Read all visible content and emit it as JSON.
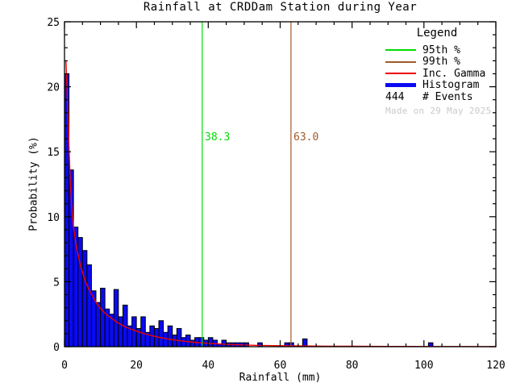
{
  "chart_data": {
    "type": "bar",
    "title": "Rainfall at CRDDam Station during Year",
    "xlabel": "Rainfall (mm)",
    "ylabel": "Probability (%)",
    "xlim": [
      0,
      120
    ],
    "ylim": [
      0,
      25
    ],
    "x_major_ticks": [
      0,
      20,
      40,
      60,
      80,
      100,
      120
    ],
    "x_minor_step": 5,
    "y_major_ticks": [
      0,
      5,
      10,
      15,
      20,
      25
    ],
    "y_minor_step": 1,
    "grid": false,
    "legend_position": "top-right-inside",
    "bin_width_mm": 1.25,
    "histogram_percent": [
      21.0,
      13.6,
      9.2,
      8.4,
      7.4,
      6.3,
      4.3,
      3.4,
      4.5,
      2.9,
      2.5,
      4.4,
      2.3,
      3.2,
      1.6,
      2.3,
      1.4,
      2.3,
      1.1,
      1.6,
      1.4,
      2.0,
      1.1,
      1.6,
      0.9,
      1.4,
      0.7,
      0.9,
      0.5,
      0.7,
      0.7,
      0.5,
      0.7,
      0.5,
      0.2,
      0.5,
      0.3,
      0.3,
      0.3,
      0.3,
      0.3,
      0,
      0,
      0.3,
      0,
      0,
      0,
      0,
      0,
      0.3,
      0.3,
      0,
      0,
      0.6,
      0,
      0,
      0,
      0,
      0,
      0,
      0,
      0,
      0,
      0,
      0,
      0,
      0,
      0,
      0,
      0,
      0,
      0,
      0,
      0,
      0,
      0,
      0,
      0,
      0,
      0,
      0,
      0.3,
      0,
      0,
      0,
      0,
      0,
      0,
      0,
      0,
      0,
      0,
      0,
      0,
      0,
      0
    ],
    "gamma_curve_points": [
      [
        0.4,
        22
      ],
      [
        0.8,
        19
      ],
      [
        1.2,
        15.8
      ],
      [
        1.6,
        12.8
      ],
      [
        2,
        10.8
      ],
      [
        2.5,
        9.2
      ],
      [
        3,
        8.2
      ],
      [
        3.5,
        7.4
      ],
      [
        4,
        6.8
      ],
      [
        4.5,
        6.2
      ],
      [
        5,
        5.7
      ],
      [
        6,
        4.9
      ],
      [
        7,
        4.3
      ],
      [
        8,
        3.8
      ],
      [
        9,
        3.3
      ],
      [
        10,
        2.95
      ],
      [
        11,
        2.65
      ],
      [
        12,
        2.4
      ],
      [
        13,
        2.2
      ],
      [
        14,
        2.0
      ],
      [
        15,
        1.82
      ],
      [
        16,
        1.66
      ],
      [
        17,
        1.52
      ],
      [
        18,
        1.4
      ],
      [
        19,
        1.3
      ],
      [
        20,
        1.2
      ],
      [
        22,
        1.02
      ],
      [
        24,
        0.87
      ],
      [
        26,
        0.74
      ],
      [
        28,
        0.63
      ],
      [
        30,
        0.54
      ],
      [
        32,
        0.46
      ],
      [
        34,
        0.4
      ],
      [
        36,
        0.34
      ],
      [
        38,
        0.3
      ],
      [
        40,
        0.26
      ],
      [
        43,
        0.21
      ],
      [
        46,
        0.17
      ],
      [
        50,
        0.13
      ],
      [
        54,
        0.1
      ],
      [
        58,
        0.08
      ],
      [
        63,
        0.062
      ],
      [
        68,
        0.05
      ],
      [
        74,
        0.04
      ],
      [
        80,
        0.031
      ],
      [
        90,
        0.021
      ],
      [
        100,
        0.014
      ],
      [
        110,
        0.01
      ],
      [
        120,
        0.007
      ]
    ],
    "percentile_lines": [
      {
        "name": "95th %",
        "value": 38.3,
        "label": "38.3",
        "color_key": "p95"
      },
      {
        "name": "99th %",
        "value": 63.0,
        "label": "63.0",
        "color_key": "p99"
      }
    ],
    "n_events": "444",
    "colors": {
      "p95": "#00dd00",
      "p99": "#a05a28",
      "gamma": "#ee0000",
      "histogram": "#0a0af2",
      "axis": "#000000",
      "note": "#c9c9c9"
    }
  },
  "legend": {
    "title": "Legend",
    "items": [
      {
        "label": "95th %",
        "swatch": "line",
        "color_key": "p95"
      },
      {
        "label": "99th %",
        "swatch": "line",
        "color_key": "p99"
      },
      {
        "label": "Inc. Gamma",
        "swatch": "line",
        "color_key": "gamma"
      },
      {
        "label": "Histogram",
        "swatch": "thick-line",
        "color_key": "histogram"
      },
      {
        "prefix": "444",
        "label": "# Events",
        "swatch": "text"
      }
    ],
    "note": "Made on 29 May 2025"
  }
}
